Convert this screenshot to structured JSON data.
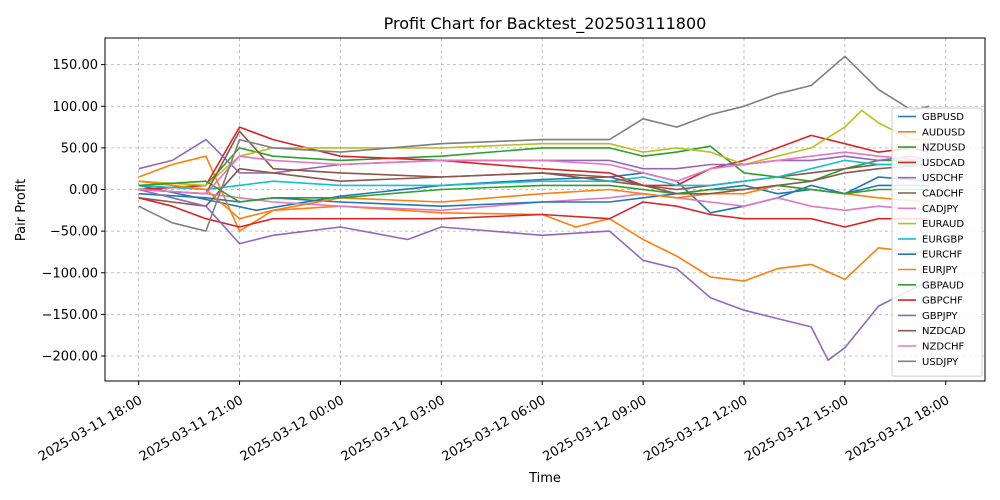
{
  "chart_data": {
    "type": "line",
    "title": "Profit Chart for Backtest_202503111800",
    "xlabel": "Time",
    "ylabel": "Pair Profit",
    "xlim": [
      "2025-03-11 17:00",
      "2025-03-12 19:10"
    ],
    "ylim": [
      -230,
      182
    ],
    "grid": true,
    "legend_position": "right",
    "x_ticks": [
      "2025-03-11 18:00",
      "2025-03-11 21:00",
      "2025-03-12 00:00",
      "2025-03-12 03:00",
      "2025-03-12 06:00",
      "2025-03-12 09:00",
      "2025-03-12 12:00",
      "2025-03-12 15:00",
      "2025-03-12 18:00"
    ],
    "y_ticks": [
      150,
      100,
      50,
      0,
      -50,
      -100,
      -150,
      -200
    ],
    "y_tick_labels": [
      "150.00",
      "100.00",
      "50.00",
      "0.00",
      "−50.00",
      "−100.00",
      "−150.00",
      "−200.00"
    ],
    "series": [
      {
        "name": "GBPUSD",
        "color": "#1f77b4",
        "x": [
          "2025-03-11 18:00",
          "2025-03-11 20:00",
          "2025-03-11 21:30",
          "2025-03-12 00:00",
          "2025-03-12 03:00",
          "2025-03-12 06:00",
          "2025-03-12 08:00",
          "2025-03-12 09:00",
          "2025-03-12 10:00",
          "2025-03-12 11:00",
          "2025-03-12 12:00",
          "2025-03-12 13:00",
          "2025-03-12 14:00",
          "2025-03-12 15:00",
          "2025-03-12 16:00",
          "2025-03-12 17:30"
        ],
        "values": [
          5,
          -12,
          -25,
          -8,
          5,
          12,
          15,
          20,
          10,
          -28,
          -20,
          -10,
          5,
          -5,
          15,
          10
        ]
      },
      {
        "name": "AUDUSD",
        "color": "#ff7f0e",
        "x": [
          "2025-03-11 18:00",
          "2025-03-11 19:00",
          "2025-03-11 20:00",
          "2025-03-11 21:00",
          "2025-03-11 22:00",
          "2025-03-12 00:00",
          "2025-03-12 03:00",
          "2025-03-12 06:00",
          "2025-03-12 07:00",
          "2025-03-12 08:00",
          "2025-03-12 09:00",
          "2025-03-12 10:00",
          "2025-03-12 11:00",
          "2025-03-12 12:00",
          "2025-03-12 13:00",
          "2025-03-12 14:00",
          "2025-03-12 15:00",
          "2025-03-12 16:00",
          "2025-03-12 17:00",
          "2025-03-12 17:30"
        ],
        "values": [
          15,
          30,
          40,
          -50,
          -25,
          -20,
          -28,
          -30,
          -45,
          -35,
          -60,
          -80,
          -105,
          -110,
          -95,
          -90,
          -108,
          -70,
          -75,
          -75
        ]
      },
      {
        "name": "NZDUSD",
        "color": "#2ca02c",
        "x": [
          "2025-03-11 18:00",
          "2025-03-11 20:00",
          "2025-03-11 21:00",
          "2025-03-11 22:00",
          "2025-03-12 00:00",
          "2025-03-12 03:00",
          "2025-03-12 06:00",
          "2025-03-12 08:00",
          "2025-03-12 09:00",
          "2025-03-12 10:00",
          "2025-03-12 11:00",
          "2025-03-12 12:00",
          "2025-03-12 13:00",
          "2025-03-12 14:00",
          "2025-03-12 15:00",
          "2025-03-12 16:00",
          "2025-03-12 17:00",
          "2025-03-12 17:30"
        ],
        "values": [
          0,
          5,
          50,
          40,
          35,
          40,
          50,
          50,
          40,
          45,
          52,
          20,
          15,
          10,
          25,
          35,
          35,
          30
        ]
      },
      {
        "name": "USDCAD",
        "color": "#d62728",
        "x": [
          "2025-03-11 18:00",
          "2025-03-11 20:00",
          "2025-03-11 21:00",
          "2025-03-11 22:00",
          "2025-03-12 00:00",
          "2025-03-12 03:00",
          "2025-03-12 06:00",
          "2025-03-12 08:00",
          "2025-03-12 09:00",
          "2025-03-12 10:00",
          "2025-03-12 11:00",
          "2025-03-12 12:00",
          "2025-03-12 13:00",
          "2025-03-12 14:00",
          "2025-03-12 15:00",
          "2025-03-12 16:00",
          "2025-03-12 17:00",
          "2025-03-12 17:30"
        ],
        "values": [
          0,
          5,
          75,
          60,
          40,
          35,
          25,
          20,
          5,
          5,
          25,
          35,
          50,
          65,
          55,
          45,
          50,
          45
        ]
      },
      {
        "name": "USDCHF",
        "color": "#9467bd",
        "x": [
          "2025-03-11 18:00",
          "2025-03-11 19:00",
          "2025-03-11 20:00",
          "2025-03-11 21:00",
          "2025-03-11 22:00",
          "2025-03-12 00:00",
          "2025-03-12 03:00",
          "2025-03-12 06:00",
          "2025-03-12 08:00",
          "2025-03-12 09:00",
          "2025-03-12 10:00",
          "2025-03-12 11:00",
          "2025-03-12 12:00",
          "2025-03-12 13:00",
          "2025-03-12 14:00",
          "2025-03-12 15:00",
          "2025-03-12 16:00",
          "2025-03-12 17:00",
          "2025-03-12 17:30"
        ],
        "values": [
          25,
          35,
          60,
          20,
          20,
          30,
          35,
          35,
          35,
          25,
          25,
          30,
          30,
          35,
          35,
          40,
          35,
          40,
          35
        ]
      },
      {
        "name": "CADCHF",
        "color": "#8c564b",
        "x": [
          "2025-03-11 18:00",
          "2025-03-11 19:00",
          "2025-03-11 20:00",
          "2025-03-11 21:00",
          "2025-03-11 22:00",
          "2025-03-12 00:00",
          "2025-03-12 03:00",
          "2025-03-12 06:00",
          "2025-03-12 08:00",
          "2025-03-12 09:00",
          "2025-03-12 10:00",
          "2025-03-12 11:00",
          "2025-03-12 12:00",
          "2025-03-12 13:00",
          "2025-03-12 14:00",
          "2025-03-12 15:00",
          "2025-03-12 16:00",
          "2025-03-12 17:30"
        ],
        "values": [
          -10,
          -15,
          -20,
          25,
          20,
          10,
          15,
          20,
          10,
          5,
          0,
          5,
          10,
          15,
          20,
          25,
          30,
          30
        ]
      },
      {
        "name": "CADJPY",
        "color": "#e377c2",
        "x": [
          "2025-03-11 18:00",
          "2025-03-11 20:00",
          "2025-03-11 21:00",
          "2025-03-11 22:00",
          "2025-03-12 00:00",
          "2025-03-12 03:00",
          "2025-03-12 06:00",
          "2025-03-12 08:00",
          "2025-03-12 09:00",
          "2025-03-12 10:00",
          "2025-03-12 11:00",
          "2025-03-12 12:00",
          "2025-03-12 13:00",
          "2025-03-12 14:00",
          "2025-03-12 15:00",
          "2025-03-12 16:00",
          "2025-03-12 17:30"
        ],
        "values": [
          0,
          -5,
          -10,
          -15,
          -20,
          -25,
          -15,
          -10,
          -5,
          -10,
          -15,
          -20,
          -10,
          -20,
          -25,
          -20,
          -25
        ]
      },
      {
        "name": "EURAUD",
        "color": "#bcbd22",
        "x": [
          "2025-03-11 18:00",
          "2025-03-11 20:00",
          "2025-03-11 21:00",
          "2025-03-11 22:00",
          "2025-03-12 00:00",
          "2025-03-12 03:00",
          "2025-03-12 06:00",
          "2025-03-12 08:00",
          "2025-03-12 09:00",
          "2025-03-12 10:00",
          "2025-03-12 11:00",
          "2025-03-12 12:00",
          "2025-03-12 13:00",
          "2025-03-12 14:00",
          "2025-03-12 15:00",
          "2025-03-12 15:30",
          "2025-03-12 16:00",
          "2025-03-12 17:00",
          "2025-03-12 17:30"
        ],
        "values": [
          10,
          5,
          40,
          50,
          50,
          50,
          55,
          55,
          45,
          50,
          45,
          30,
          40,
          50,
          75,
          95,
          80,
          60,
          60
        ]
      },
      {
        "name": "EURGBP",
        "color": "#17becf",
        "x": [
          "2025-03-11 18:00",
          "2025-03-11 20:00",
          "2025-03-11 21:00",
          "2025-03-11 22:00",
          "2025-03-12 00:00",
          "2025-03-12 03:00",
          "2025-03-12 06:00",
          "2025-03-12 08:00",
          "2025-03-12 09:00",
          "2025-03-12 10:00",
          "2025-03-12 11:00",
          "2025-03-12 12:00",
          "2025-03-12 13:00",
          "2025-03-12 14:00",
          "2025-03-12 15:00",
          "2025-03-12 16:00",
          "2025-03-12 17:30"
        ],
        "values": [
          5,
          0,
          5,
          10,
          5,
          5,
          10,
          10,
          15,
          5,
          5,
          10,
          15,
          25,
          35,
          30,
          30
        ]
      },
      {
        "name": "EURCHF",
        "color": "#1f77b4",
        "x": [
          "2025-03-11 18:00",
          "2025-03-11 20:00",
          "2025-03-11 21:00",
          "2025-03-11 22:00",
          "2025-03-12 00:00",
          "2025-03-12 03:00",
          "2025-03-12 06:00",
          "2025-03-12 08:00",
          "2025-03-12 09:00",
          "2025-03-12 10:00",
          "2025-03-12 11:00",
          "2025-03-12 12:00",
          "2025-03-12 13:00",
          "2025-03-12 14:00",
          "2025-03-12 15:00",
          "2025-03-12 16:00",
          "2025-03-12 17:30"
        ],
        "values": [
          -5,
          -10,
          -15,
          -10,
          -15,
          -20,
          -15,
          -15,
          -10,
          -5,
          0,
          5,
          -5,
          0,
          -5,
          5,
          5
        ]
      },
      {
        "name": "EURJPY",
        "color": "#ff7f0e",
        "x": [
          "2025-03-11 18:00",
          "2025-03-11 20:00",
          "2025-03-11 21:00",
          "2025-03-11 22:00",
          "2025-03-12 00:00",
          "2025-03-12 03:00",
          "2025-03-12 06:00",
          "2025-03-12 08:00",
          "2025-03-12 09:00",
          "2025-03-12 10:00",
          "2025-03-12 11:00",
          "2025-03-12 12:00",
          "2025-03-12 13:00",
          "2025-03-12 14:00",
          "2025-03-12 15:00",
          "2025-03-12 16:00",
          "2025-03-12 17:30"
        ],
        "values": [
          10,
          0,
          -35,
          -25,
          -10,
          -15,
          -5,
          0,
          -5,
          -10,
          -5,
          -5,
          5,
          0,
          -5,
          -10,
          -15
        ]
      },
      {
        "name": "GBPAUD",
        "color": "#2ca02c",
        "x": [
          "2025-03-11 18:00",
          "2025-03-11 20:00",
          "2025-03-11 21:00",
          "2025-03-11 22:00",
          "2025-03-12 00:00",
          "2025-03-12 03:00",
          "2025-03-12 06:00",
          "2025-03-12 08:00",
          "2025-03-12 09:00",
          "2025-03-12 10:00",
          "2025-03-12 11:00",
          "2025-03-12 12:00",
          "2025-03-12 13:00",
          "2025-03-12 14:00",
          "2025-03-12 15:00",
          "2025-03-12 16:00",
          "2025-03-12 17:30"
        ],
        "values": [
          5,
          10,
          -15,
          -10,
          -10,
          0,
          5,
          5,
          0,
          -5,
          0,
          0,
          5,
          0,
          -5,
          0,
          0
        ]
      },
      {
        "name": "GBPCHF",
        "color": "#d62728",
        "x": [
          "2025-03-11 18:00",
          "2025-03-11 19:00",
          "2025-03-11 20:00",
          "2025-03-11 21:00",
          "2025-03-11 22:00",
          "2025-03-12 00:00",
          "2025-03-12 03:00",
          "2025-03-12 06:00",
          "2025-03-12 08:00",
          "2025-03-12 09:00",
          "2025-03-12 10:00",
          "2025-03-12 11:00",
          "2025-03-12 12:00",
          "2025-03-12 13:00",
          "2025-03-12 14:00",
          "2025-03-12 15:00",
          "2025-03-12 16:00",
          "2025-03-12 17:30"
        ],
        "values": [
          -10,
          -20,
          -35,
          -45,
          -35,
          -35,
          -35,
          -30,
          -35,
          -15,
          -20,
          -30,
          -35,
          -35,
          -35,
          -45,
          -35,
          -35
        ]
      },
      {
        "name": "GBPJPY",
        "color": "#9467bd",
        "x": [
          "2025-03-11 18:00",
          "2025-03-11 20:00",
          "2025-03-11 21:00",
          "2025-03-11 22:00",
          "2025-03-12 00:00",
          "2025-03-12 02:00",
          "2025-03-12 03:00",
          "2025-03-12 06:00",
          "2025-03-12 08:00",
          "2025-03-12 09:00",
          "2025-03-12 10:00",
          "2025-03-12 11:00",
          "2025-03-12 12:00",
          "2025-03-12 13:00",
          "2025-03-12 14:00",
          "2025-03-12 14:30",
          "2025-03-12 15:00",
          "2025-03-12 16:00",
          "2025-03-12 17:30"
        ],
        "values": [
          0,
          -20,
          -65,
          -55,
          -45,
          -60,
          -45,
          -55,
          -50,
          -85,
          -95,
          -130,
          -145,
          -155,
          -165,
          -205,
          -190,
          -140,
          -110
        ]
      },
      {
        "name": "NZDCAD",
        "color": "#8c564b",
        "x": [
          "2025-03-11 18:00",
          "2025-03-11 20:00",
          "2025-03-11 21:00",
          "2025-03-11 22:00",
          "2025-03-12 00:00",
          "2025-03-12 03:00",
          "2025-03-12 06:00",
          "2025-03-12 08:00",
          "2025-03-12 09:00",
          "2025-03-12 10:00",
          "2025-03-12 11:00",
          "2025-03-12 12:00",
          "2025-03-12 13:00",
          "2025-03-12 14:00",
          "2025-03-12 15:00",
          "2025-03-12 16:00",
          "2025-03-12 17:30"
        ],
        "values": [
          0,
          -5,
          70,
          25,
          20,
          15,
          20,
          15,
          5,
          -5,
          -5,
          0,
          5,
          10,
          20,
          25,
          30
        ]
      },
      {
        "name": "NZDCHF",
        "color": "#e377c2",
        "x": [
          "2025-03-11 18:00",
          "2025-03-11 20:00",
          "2025-03-11 21:00",
          "2025-03-11 22:00",
          "2025-03-12 00:00",
          "2025-03-12 03:00",
          "2025-03-12 06:00",
          "2025-03-12 08:00",
          "2025-03-12 09:00",
          "2025-03-12 10:00",
          "2025-03-12 11:00",
          "2025-03-12 12:00",
          "2025-03-12 13:00",
          "2025-03-12 14:00",
          "2025-03-12 15:00",
          "2025-03-12 16:00",
          "2025-03-12 17:30"
        ],
        "values": [
          0,
          -5,
          40,
          35,
          30,
          35,
          35,
          30,
          20,
          10,
          25,
          30,
          35,
          40,
          45,
          40,
          35
        ]
      },
      {
        "name": "USDJPY",
        "color": "#7f7f7f",
        "x": [
          "2025-03-11 18:00",
          "2025-03-11 19:00",
          "2025-03-11 20:00",
          "2025-03-11 21:00",
          "2025-03-11 22:00",
          "2025-03-12 00:00",
          "2025-03-12 03:00",
          "2025-03-12 06:00",
          "2025-03-12 08:00",
          "2025-03-12 09:00",
          "2025-03-12 10:00",
          "2025-03-12 11:00",
          "2025-03-12 12:00",
          "2025-03-12 13:00",
          "2025-03-12 14:00",
          "2025-03-12 15:00",
          "2025-03-12 16:00",
          "2025-03-12 17:00",
          "2025-03-12 17:30"
        ],
        "values": [
          -20,
          -40,
          -50,
          60,
          50,
          45,
          55,
          60,
          60,
          85,
          75,
          90,
          100,
          115,
          125,
          160,
          120,
          95,
          100
        ]
      }
    ]
  }
}
